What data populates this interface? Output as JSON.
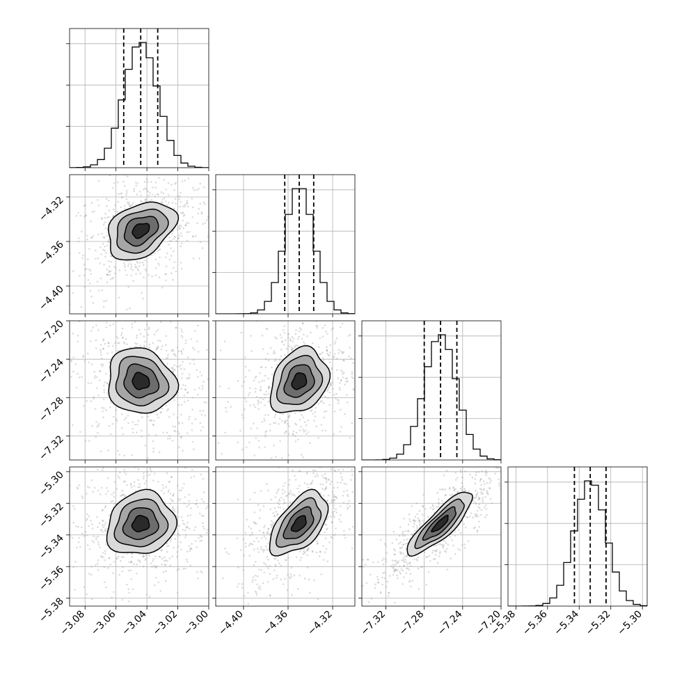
{
  "chart_data": {
    "type": "corner",
    "parameters": [
      {
        "xticks": [
          "−3.08",
          "−3.06",
          "−3.04",
          "−3.02",
          "−3.00"
        ],
        "xtick_values": [
          -3.08,
          -3.06,
          -3.04,
          -3.02,
          -3.0
        ],
        "range": [
          -3.09,
          -3.0
        ],
        "yticks": [],
        "ytick_values": [],
        "mean": -3.044,
        "sd": 0.011,
        "quantiles": [
          -3.055,
          -3.044,
          -3.033
        ]
      },
      {
        "xticks": [
          "−4.40",
          "−4.36",
          "−4.32"
        ],
        "xtick_values": [
          -4.4,
          -4.36,
          -4.32
        ],
        "range": [
          -4.425,
          -4.3
        ],
        "yticks": [
          "−4.32",
          "−4.36",
          "−4.40"
        ],
        "ytick_values": [
          -4.32,
          -4.36,
          -4.4
        ],
        "mean": -4.35,
        "sd": 0.013,
        "quantiles": [
          -4.363,
          -4.35,
          -4.337
        ]
      },
      {
        "xticks": [
          "−7.32",
          "−7.28",
          "−7.24",
          "−7.20"
        ],
        "xtick_values": [
          -7.32,
          -7.28,
          -7.24,
          -7.2
        ],
        "range": [
          -7.345,
          -7.2
        ],
        "yticks": [
          "−7.20",
          "−7.24",
          "−7.28",
          "−7.32"
        ],
        "ytick_values": [
          -7.2,
          -7.24,
          -7.28,
          -7.32
        ],
        "mean": -7.263,
        "sd": 0.017,
        "quantiles": [
          -7.28,
          -7.263,
          -7.246
        ]
      },
      {
        "xticks": [
          "−5.38",
          "−5.36",
          "−5.34",
          "−5.32",
          "−5.30"
        ],
        "xtick_values": [
          -5.38,
          -5.36,
          -5.34,
          -5.32,
          -5.3
        ],
        "range": [
          -5.385,
          -5.297
        ],
        "yticks": [
          "−5.30",
          "−5.32",
          "−5.34",
          "−5.36",
          "−5.38"
        ],
        "ytick_values": [
          -5.3,
          -5.32,
          -5.34,
          -5.36,
          -5.38
        ],
        "mean": -5.333,
        "sd": 0.01,
        "quantiles": [
          -5.343,
          -5.333,
          -5.323
        ]
      }
    ],
    "correlations": {
      "1-0": 0.35,
      "2-0": -0.1,
      "2-1": 0.25,
      "3-0": 0.12,
      "3-1": 0.55,
      "3-2": 0.85
    },
    "hist_bins": 20,
    "grid": true,
    "colors": {
      "axis": "#000000",
      "grid": "#b0b0b0",
      "points": "#9a9a9a",
      "density": "#000000"
    }
  }
}
